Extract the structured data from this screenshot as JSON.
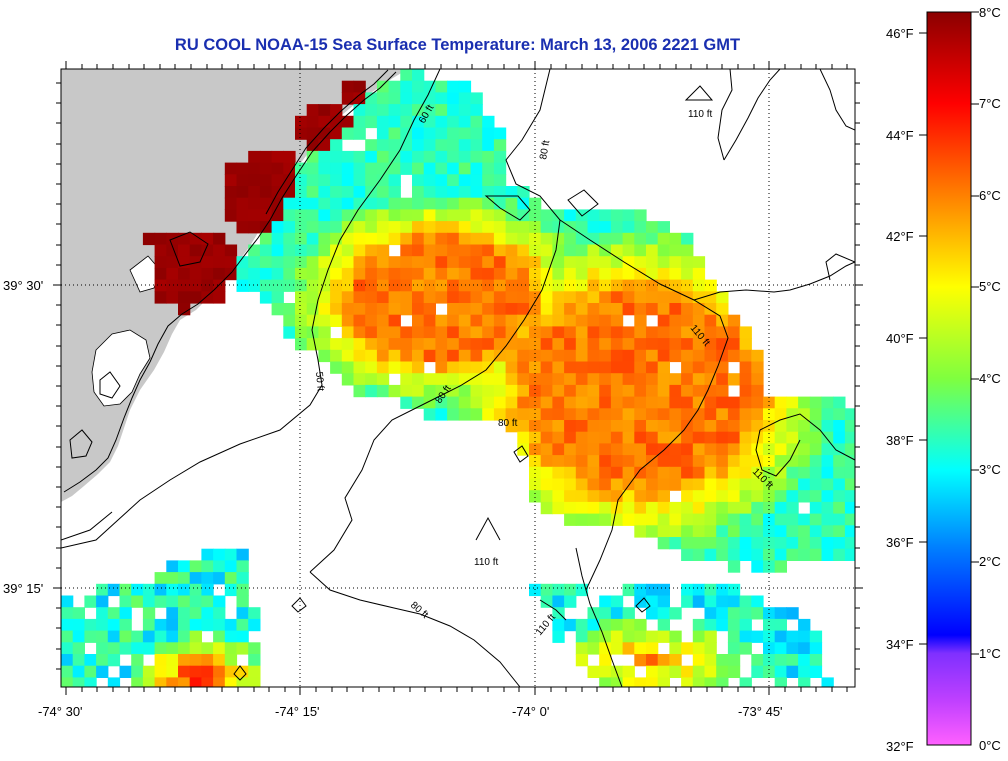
{
  "title": "RU COOL  NOAA-15  Sea Surface Temperature:  March 13, 2006 2221 GMT",
  "map": {
    "lon_labels": [
      "-74° 30'",
      "-74° 15'",
      "-74° 0'",
      "-73° 45'"
    ],
    "lat_labels": [
      "39° 30'",
      "39° 15'"
    ],
    "land_color": "#c8c8c8",
    "contour_labels": [
      "110 ft",
      "80 ft",
      "60 ft",
      "50 ft",
      "80 ft",
      "80 ft",
      "110 ft",
      "110 ft",
      "110 ft",
      "80 ft",
      "110 ft"
    ]
  },
  "legend": {
    "f_labels": [
      "46°F",
      "44°F",
      "42°F",
      "40°F",
      "38°F",
      "36°F",
      "34°F",
      "32°F"
    ],
    "c_labels": [
      "8°C",
      "7°C",
      "6°C",
      "5°C",
      "4°C",
      "3°C",
      "2°C",
      "1°C",
      "0°C"
    ],
    "colors": [
      "#8b0000",
      "#ff0000",
      "#ff7f00",
      "#ffff00",
      "#7fff3f",
      "#00ffff",
      "#0000ff",
      "#7f00ff",
      "#ff40ff"
    ]
  }
}
